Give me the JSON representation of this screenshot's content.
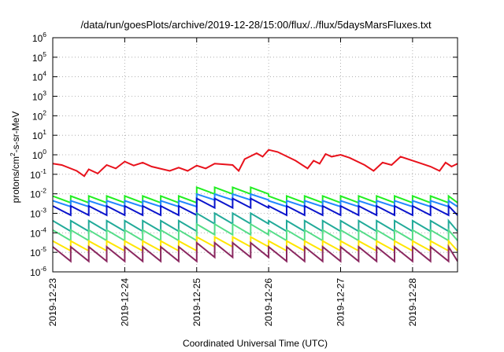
{
  "chart_data": {
    "type": "line",
    "title": "/data/run/goesPlots/archive/2019-12-28/15:00/flux/../flux/5daysMarsFluxes.txt",
    "xlabel": "Coordinated Universal Time (UTC)",
    "ylabel": {
      "base": "protons/cm",
      "sup": "2",
      "rest": "-s-sr-MeV"
    },
    "x_range": [
      "2019-12-23T00:00",
      "2019-12-28T15:00"
    ],
    "x_ticks": [
      "2019-12-23",
      "2019-12-24",
      "2019-12-25",
      "2019-12-26",
      "2019-12-27",
      "2019-12-28"
    ],
    "y_scale": "log",
    "ylim": [
      1e-06,
      1000000.0
    ],
    "y_ticks": [
      {
        "base": "10",
        "exp": "-6"
      },
      {
        "base": "10",
        "exp": "-5"
      },
      {
        "base": "10",
        "exp": "-4"
      },
      {
        "base": "10",
        "exp": "-3"
      },
      {
        "base": "10",
        "exp": "-2"
      },
      {
        "base": "10",
        "exp": "-1"
      },
      {
        "base": "10",
        "exp": "0"
      },
      {
        "base": "10",
        "exp": "1"
      },
      {
        "base": "10",
        "exp": "2"
      },
      {
        "base": "10",
        "exp": "3"
      },
      {
        "base": "10",
        "exp": "4"
      },
      {
        "base": "10",
        "exp": "5"
      },
      {
        "base": "10",
        "exp": "6"
      }
    ],
    "grid": true,
    "series": [
      {
        "color": "#e8121c",
        "points": [
          [
            "2019-12-23T00:00",
            0.35
          ],
          [
            "2019-12-23T03:00",
            0.3
          ],
          [
            "2019-12-23T08:00",
            0.15
          ],
          [
            "2019-12-23T10:30",
            0.08
          ],
          [
            "2019-12-23T12:00",
            0.18
          ],
          [
            "2019-12-23T15:00",
            0.11
          ],
          [
            "2019-12-23T18:00",
            0.3
          ],
          [
            "2019-12-23T21:00",
            0.2
          ],
          [
            "2019-12-24T00:00",
            0.45
          ],
          [
            "2019-12-24T03:00",
            0.28
          ],
          [
            "2019-12-24T06:00",
            0.4
          ],
          [
            "2019-12-24T09:00",
            0.25
          ],
          [
            "2019-12-24T15:00",
            0.15
          ],
          [
            "2019-12-24T18:00",
            0.22
          ],
          [
            "2019-12-24T21:00",
            0.15
          ],
          [
            "2019-12-25T00:00",
            0.28
          ],
          [
            "2019-12-25T03:00",
            0.2
          ],
          [
            "2019-12-25T06:00",
            0.35
          ],
          [
            "2019-12-25T12:00",
            0.3
          ],
          [
            "2019-12-25T14:00",
            0.15
          ],
          [
            "2019-12-25T16:00",
            0.6
          ],
          [
            "2019-12-25T20:00",
            1.2
          ],
          [
            "2019-12-25T22:00",
            0.8
          ],
          [
            "2019-12-26T00:00",
            1.8
          ],
          [
            "2019-12-26T03:00",
            1.4
          ],
          [
            "2019-12-26T09:00",
            0.5
          ],
          [
            "2019-12-26T13:00",
            0.2
          ],
          [
            "2019-12-26T15:00",
            0.5
          ],
          [
            "2019-12-26T17:00",
            0.35
          ],
          [
            "2019-12-26T19:00",
            1.1
          ],
          [
            "2019-12-26T21:00",
            0.8
          ],
          [
            "2019-12-27T00:00",
            1.0
          ],
          [
            "2019-12-27T03:00",
            0.7
          ],
          [
            "2019-12-27T08:00",
            0.3
          ],
          [
            "2019-12-27T11:00",
            0.15
          ],
          [
            "2019-12-27T14:00",
            0.4
          ],
          [
            "2019-12-27T17:00",
            0.3
          ],
          [
            "2019-12-27T20:00",
            0.8
          ],
          [
            "2019-12-28T02:00",
            0.4
          ],
          [
            "2019-12-28T06:00",
            0.25
          ],
          [
            "2019-12-28T09:00",
            0.15
          ],
          [
            "2019-12-28T11:00",
            0.4
          ],
          [
            "2019-12-28T13:00",
            0.25
          ],
          [
            "2019-12-28T15:00",
            0.35
          ]
        ]
      },
      {
        "color": "#22ee22",
        "base": 0.0035,
        "amp": 2.2,
        "period_hours": 6,
        "bump": 2.8
      },
      {
        "color": "#2288ff",
        "base": 0.0022,
        "amp": 2.0,
        "period_hours": 6,
        "bump": 2.2
      },
      {
        "color": "#0a14cc",
        "base": 0.0008,
        "amp": 3.0,
        "period_hours": 6,
        "bump": 2.4
      },
      {
        "color": "#22aa99",
        "base": 0.00012,
        "amp": 3.5,
        "period_hours": 6,
        "bump": 2.4
      },
      {
        "color": "#55dd88",
        "base": 4e-05,
        "amp": 3.5,
        "period_hours": 6,
        "bump": 2.0
      },
      {
        "color": "#ffe600",
        "base": 1.2e-05,
        "amp": 3.2,
        "period_hours": 6,
        "bump": 1.6
      },
      {
        "color": "#8a2860",
        "base": 3.5e-06,
        "amp": 5.5,
        "period_hours": 6,
        "bump": 1.6
      }
    ]
  }
}
